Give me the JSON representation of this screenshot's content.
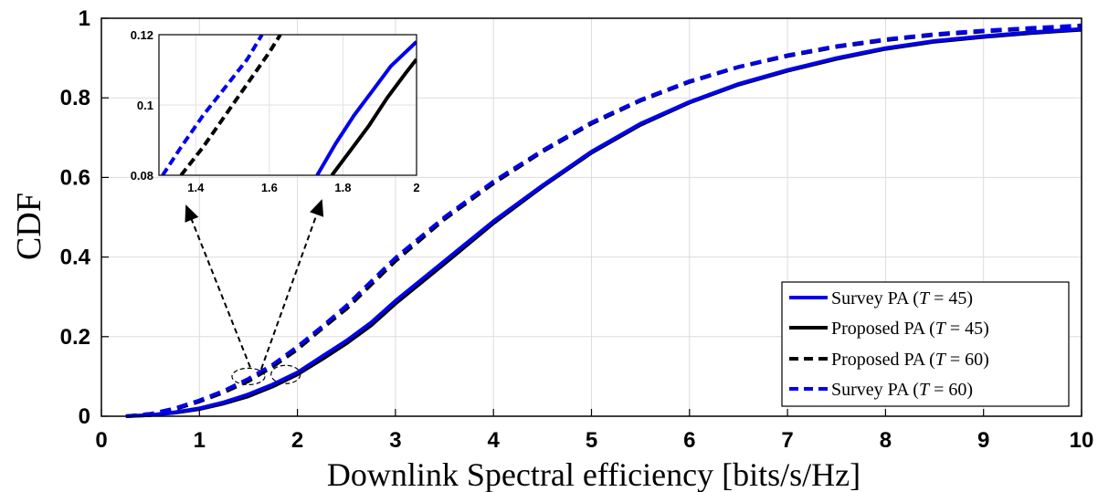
{
  "chart_data": {
    "type": "line",
    "xlabel": "Downlink Spectral efficiency [bits/s/Hz]",
    "ylabel": "CDF",
    "xlim": [
      0,
      10
    ],
    "ylim": [
      0,
      1
    ],
    "xticks": [
      "0",
      "1",
      "2",
      "3",
      "4",
      "5",
      "6",
      "7",
      "8",
      "9",
      "10"
    ],
    "yticks": [
      "0",
      "0.2",
      "0.4",
      "0.6",
      "0.8",
      "1"
    ],
    "grid": true,
    "legend_position": "bottom-right",
    "series": [
      {
        "name_prefix": "Survey PA (",
        "name_var": "T",
        "name_suffix": " = 45)",
        "color": "#0000ee",
        "dash": "solid",
        "x": [
          0.25,
          0.5,
          0.75,
          1.0,
          1.25,
          1.5,
          1.75,
          2.0,
          2.25,
          2.5,
          2.75,
          3.0,
          3.5,
          4.0,
          4.5,
          5.0,
          5.5,
          6.0,
          6.5,
          7.0,
          7.5,
          8.0,
          8.5,
          9.0,
          9.5,
          10.0
        ],
        "y": [
          0.0,
          0.003,
          0.01,
          0.02,
          0.035,
          0.055,
          0.08,
          0.11,
          0.15,
          0.19,
          0.235,
          0.29,
          0.39,
          0.49,
          0.58,
          0.665,
          0.735,
          0.79,
          0.835,
          0.87,
          0.9,
          0.925,
          0.943,
          0.955,
          0.965,
          0.973
        ]
      },
      {
        "name_prefix": "Proposed PA (",
        "name_var": "T",
        "name_suffix": " = 45)",
        "color": "#000000",
        "dash": "solid",
        "x": [
          0.25,
          0.5,
          0.75,
          1.0,
          1.25,
          1.5,
          1.75,
          2.0,
          2.25,
          2.5,
          2.75,
          3.0,
          3.5,
          4.0,
          4.5,
          5.0,
          5.5,
          6.0,
          6.5,
          7.0,
          7.5,
          8.0,
          8.5,
          9.0,
          9.5,
          10.0
        ],
        "y": [
          0.0,
          0.003,
          0.009,
          0.018,
          0.032,
          0.05,
          0.075,
          0.105,
          0.143,
          0.183,
          0.228,
          0.283,
          0.383,
          0.485,
          0.577,
          0.662,
          0.732,
          0.788,
          0.833,
          0.868,
          0.898,
          0.923,
          0.941,
          0.953,
          0.963,
          0.971
        ]
      },
      {
        "name_prefix": "Proposed PA (",
        "name_var": "T",
        "name_suffix": " = 60)",
        "color": "#000000",
        "dash": "dashed",
        "x": [
          0.25,
          0.5,
          0.75,
          1.0,
          1.25,
          1.5,
          1.75,
          2.0,
          2.25,
          2.5,
          2.75,
          3.0,
          3.5,
          4.0,
          4.5,
          5.0,
          5.5,
          6.0,
          6.5,
          7.0,
          7.5,
          8.0,
          8.5,
          9.0,
          9.5,
          10.0
        ],
        "y": [
          0.0,
          0.006,
          0.018,
          0.037,
          0.06,
          0.088,
          0.125,
          0.168,
          0.22,
          0.27,
          0.33,
          0.39,
          0.495,
          0.585,
          0.665,
          0.735,
          0.793,
          0.84,
          0.877,
          0.905,
          0.928,
          0.945,
          0.958,
          0.967,
          0.974,
          0.98
        ]
      },
      {
        "name_prefix": "Survey PA (",
        "name_var": "T",
        "name_suffix": " = 60)",
        "color": "#0000ee",
        "dash": "dashed",
        "x": [
          0.25,
          0.5,
          0.75,
          1.0,
          1.25,
          1.5,
          1.75,
          2.0,
          2.25,
          2.5,
          2.75,
          3.0,
          3.5,
          4.0,
          4.5,
          5.0,
          5.5,
          6.0,
          6.5,
          7.0,
          7.5,
          8.0,
          8.5,
          9.0,
          9.5,
          10.0
        ],
        "y": [
          0.0,
          0.006,
          0.02,
          0.04,
          0.064,
          0.094,
          0.13,
          0.175,
          0.225,
          0.278,
          0.338,
          0.398,
          0.5,
          0.59,
          0.668,
          0.738,
          0.795,
          0.842,
          0.878,
          0.907,
          0.93,
          0.947,
          0.96,
          0.969,
          0.976,
          0.982
        ]
      }
    ],
    "inset": {
      "xlim": [
        1.3,
        2.0
      ],
      "ylim": [
        0.08,
        0.12
      ],
      "xticks": [
        "1.4",
        "1.6",
        "1.8",
        "2"
      ],
      "yticks": [
        "0.08",
        "0.1",
        "0.12"
      ],
      "series": [
        {
          "color": "#0000ee",
          "dash": "dashed",
          "x": [
            1.31,
            1.36,
            1.42,
            1.48,
            1.54,
            1.58
          ],
          "y": [
            0.08,
            0.088,
            0.097,
            0.105,
            0.113,
            0.12
          ]
        },
        {
          "color": "#000000",
          "dash": "dashed",
          "x": [
            1.36,
            1.42,
            1.48,
            1.54,
            1.6,
            1.63
          ],
          "y": [
            0.08,
            0.088,
            0.097,
            0.106,
            0.115,
            0.12
          ]
        },
        {
          "color": "#0000ee",
          "dash": "solid",
          "x": [
            1.73,
            1.78,
            1.83,
            1.88,
            1.93,
            2.0
          ],
          "y": [
            0.08,
            0.089,
            0.097,
            0.104,
            0.111,
            0.118
          ]
        },
        {
          "color": "#000000",
          "dash": "solid",
          "x": [
            1.77,
            1.82,
            1.87,
            1.92,
            1.97,
            2.0
          ],
          "y": [
            0.08,
            0.087,
            0.094,
            0.102,
            0.109,
            0.113
          ]
        }
      ]
    }
  }
}
